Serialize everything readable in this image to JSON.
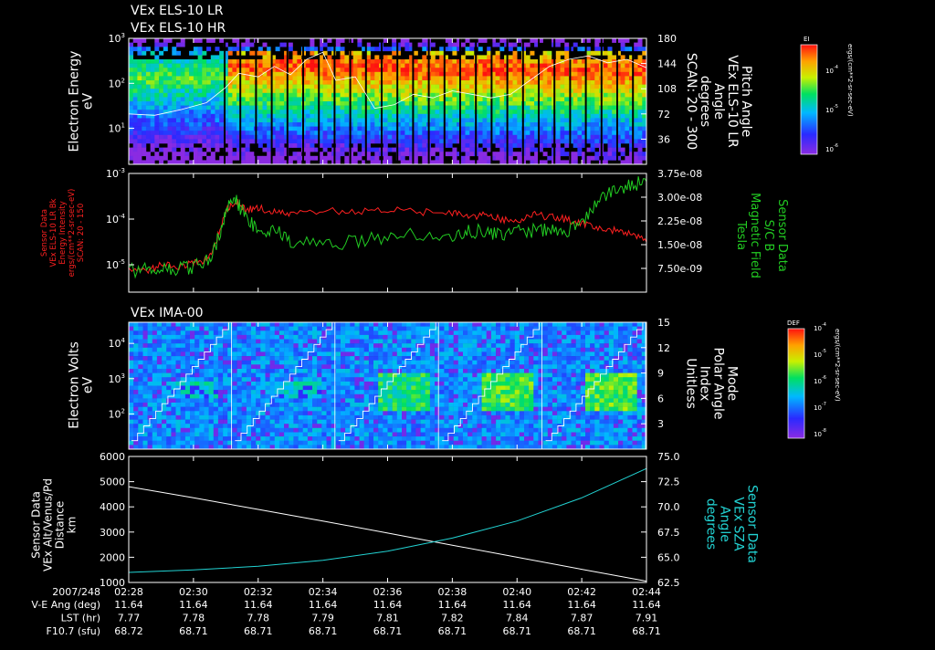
{
  "titles": {
    "p1_line1": "VEx ELS-10 LR",
    "p1_line2": "VEx ELS-10 HR",
    "p3": "VEx IMA-00"
  },
  "colors": {
    "white": "#ffffff",
    "red": "#ff2020",
    "green": "#22cc22",
    "cyan": "#22d3d3"
  },
  "chart_data": [
    {
      "type": "heatmap",
      "panel": "ELS electron spectrogram",
      "ylabel": [
        "Electron Energy",
        "eV"
      ],
      "y_scale": "log",
      "y_ticks": [
        {
          "base": "10",
          "exp": "3",
          "v": 3
        },
        {
          "base": "10",
          "exp": "2",
          "v": 2
        },
        {
          "base": "10",
          "exp": "1",
          "v": 1
        }
      ],
      "ylim_log10": [
        0.2,
        3.0
      ],
      "right_ylabel": [
        "Pitch Angle",
        "VEx ELS-10 LR",
        "Angle",
        "degrees",
        "SCAN: 20 - 300"
      ],
      "right_ticks": [
        "180",
        "144",
        "108",
        "72",
        "36"
      ],
      "right_lim": [
        0,
        180
      ],
      "right_tick_values": [
        180,
        144,
        108,
        72,
        36
      ],
      "colorbar": {
        "label": "EI",
        "units": "ergs/(cm**2-sr-sec-eV)",
        "ticks": [
          {
            "base": "10",
            "exp": "-4"
          },
          {
            "base": "10",
            "exp": "-5"
          },
          {
            "base": "10",
            "exp": "-6"
          }
        ]
      },
      "pitch_angle_deg": [
        {
          "t": 0.0,
          "v": 72
        },
        {
          "t": 0.8,
          "v": 70
        },
        {
          "t": 1.6,
          "v": 78
        },
        {
          "t": 2.4,
          "v": 88
        },
        {
          "t": 3.0,
          "v": 110
        },
        {
          "t": 3.4,
          "v": 130
        },
        {
          "t": 4.0,
          "v": 125
        },
        {
          "t": 4.5,
          "v": 140
        },
        {
          "t": 5.0,
          "v": 128
        },
        {
          "t": 5.5,
          "v": 150
        },
        {
          "t": 6.0,
          "v": 160
        },
        {
          "t": 6.4,
          "v": 120
        },
        {
          "t": 7.0,
          "v": 125
        },
        {
          "t": 7.6,
          "v": 80
        },
        {
          "t": 8.2,
          "v": 85
        },
        {
          "t": 8.8,
          "v": 100
        },
        {
          "t": 9.4,
          "v": 95
        },
        {
          "t": 10.0,
          "v": 105
        },
        {
          "t": 10.6,
          "v": 100
        },
        {
          "t": 11.2,
          "v": 95
        },
        {
          "t": 11.8,
          "v": 100
        },
        {
          "t": 12.4,
          "v": 120
        },
        {
          "t": 13.0,
          "v": 140
        },
        {
          "t": 13.6,
          "v": 150
        },
        {
          "t": 14.2,
          "v": 155
        },
        {
          "t": 14.8,
          "v": 145
        },
        {
          "t": 15.4,
          "v": 150
        },
        {
          "t": 16.0,
          "v": 138
        }
      ]
    },
    {
      "type": "line",
      "panel": "Energy intensity and magnetic field",
      "left_ylabel": [
        "Sensor Data",
        "VEx ELS-10 LR Bk",
        "Energy Intensity",
        "ergs/(cm**2-sr-sec-eV)",
        "SCAN: 20 - 150"
      ],
      "left_scale": "log",
      "left_ticks": [
        {
          "base": "10",
          "exp": "-3",
          "v": -3
        },
        {
          "base": "10",
          "exp": "-4",
          "v": -4
        },
        {
          "base": "10",
          "exp": "-5",
          "v": -5
        }
      ],
      "left_lim_log10": [
        -5.6,
        -3.0
      ],
      "right_ylabel": [
        "Sensor Data",
        "S/C B",
        "Magnetic Field",
        "Tesla"
      ],
      "right_ticks": [
        "3.75e-08",
        "3.00e-08",
        "2.25e-08",
        "1.50e-08",
        "7.50e-09"
      ],
      "right_tick_values": [
        3.75e-08,
        3e-08,
        2.25e-08,
        1.5e-08,
        7.5e-09
      ],
      "right_lim": [
        0,
        3.75e-08
      ],
      "series": [
        {
          "name": "Energy Intensity",
          "axis": "left",
          "color": "red",
          "x": [
            0,
            0.5,
            1.0,
            1.5,
            2.0,
            2.4,
            2.7,
            3.0,
            3.3,
            3.6,
            4.0,
            4.5,
            5.0,
            6.0,
            7.0,
            8.0,
            9.0,
            10.0,
            10.5,
            11.0,
            11.5,
            12.0,
            12.5,
            13.0,
            13.5,
            14.0,
            14.5,
            15.0,
            15.5,
            16.0
          ],
          "y_log10": [
            -5.1,
            -5.15,
            -5.0,
            -5.05,
            -4.95,
            -4.9,
            -4.5,
            -3.8,
            -3.6,
            -3.8,
            -3.75,
            -3.85,
            -3.9,
            -3.8,
            -3.85,
            -3.8,
            -3.85,
            -3.85,
            -3.95,
            -3.9,
            -4.0,
            -4.05,
            -3.9,
            -3.95,
            -4.0,
            -4.1,
            -4.2,
            -4.25,
            -4.3,
            -4.5
          ]
        },
        {
          "name": "Magnetic Field",
          "axis": "right",
          "color": "green",
          "x": [
            0,
            0.5,
            1.0,
            1.5,
            2.0,
            2.5,
            2.8,
            3.0,
            3.3,
            3.6,
            4.0,
            4.5,
            5.0,
            6.0,
            7.0,
            8.0,
            9.0,
            10.0,
            10.5,
            11.0,
            11.5,
            12.0,
            12.5,
            13.0,
            13.5,
            14.0,
            14.5,
            15.0,
            15.5,
            16.0
          ],
          "y_e8": [
            0.7,
            0.7,
            0.75,
            0.72,
            0.8,
            1.0,
            1.8,
            2.6,
            2.9,
            2.4,
            1.9,
            2.0,
            1.6,
            1.5,
            1.6,
            1.75,
            1.85,
            1.75,
            1.9,
            1.95,
            1.75,
            1.9,
            1.95,
            2.0,
            1.9,
            2.1,
            3.0,
            3.2,
            3.4,
            3.5
          ]
        }
      ]
    },
    {
      "type": "heatmap",
      "panel": "IMA ion spectrogram",
      "ylabel": [
        "Electron Volts",
        "eV"
      ],
      "y_scale": "log",
      "y_ticks": [
        {
          "base": "10",
          "exp": "4",
          "v": 4
        },
        {
          "base": "10",
          "exp": "3",
          "v": 3
        },
        {
          "base": "10",
          "exp": "2",
          "v": 2
        }
      ],
      "ylim_log10": [
        1.0,
        4.6
      ],
      "right_ylabel": [
        "Mode",
        "Polar Angle",
        "Index",
        "Unitless"
      ],
      "right_ticks": [
        "15",
        "12",
        "9",
        "6",
        "3"
      ],
      "right_tick_values": [
        15,
        12,
        9,
        6,
        3
      ],
      "right_lim": [
        0,
        15
      ],
      "colorbar": {
        "label": "DEF",
        "units": "ergs/(cm**2-sr-sec-eV)",
        "ticks": [
          {
            "base": "10",
            "exp": "-4"
          },
          {
            "base": "10",
            "exp": "-5"
          },
          {
            "base": "10",
            "exp": "-6"
          },
          {
            "base": "10",
            "exp": "-7"
          },
          {
            "base": "10",
            "exp": "-8"
          }
        ]
      },
      "polar_angle_sweeps": 5
    },
    {
      "type": "line",
      "panel": "Altitude and solar zenith angle",
      "left_ylabel": [
        "Sensor Data",
        "VEx Alt/Venus/Pd",
        "Distance",
        "km"
      ],
      "left_ticks": [
        "6000",
        "5000",
        "4000",
        "3000",
        "2000",
        "1000"
      ],
      "left_tick_values": [
        6000,
        5000,
        4000,
        3000,
        2000,
        1000
      ],
      "left_lim": [
        1000,
        6000
      ],
      "right_ylabel": [
        "Sensor Data",
        "VEx SZA",
        "Angle",
        "degrees"
      ],
      "right_ticks": [
        "75.0",
        "72.5",
        "70.0",
        "67.5",
        "65.0",
        "62.5"
      ],
      "right_tick_values": [
        75.0,
        72.5,
        70.0,
        67.5,
        65.0,
        62.5
      ],
      "right_lim": [
        62.5,
        75.0
      ],
      "series": [
        {
          "name": "Distance",
          "axis": "left",
          "color": "white",
          "x": [
            0,
            2,
            4,
            6,
            8,
            10,
            12,
            14,
            16
          ],
          "y": [
            4800,
            4360,
            3900,
            3440,
            2960,
            2480,
            2000,
            1520,
            1050
          ]
        },
        {
          "name": "SZA",
          "axis": "right",
          "color": "cyan",
          "x": [
            0,
            2,
            4,
            6,
            8,
            10,
            12,
            14,
            16
          ],
          "y": [
            63.5,
            63.75,
            64.1,
            64.7,
            65.6,
            66.9,
            68.6,
            70.9,
            73.8
          ]
        }
      ]
    }
  ],
  "time_axis": {
    "date": "2007/248",
    "ticks": [
      "02:28",
      "02:30",
      "02:32",
      "02:34",
      "02:36",
      "02:38",
      "02:40",
      "02:42",
      "02:44"
    ],
    "tick_minutes": [
      0,
      2,
      4,
      6,
      8,
      10,
      12,
      14,
      16
    ],
    "range_minutes": [
      0,
      16
    ]
  },
  "ephemeris": [
    {
      "label": "V-E Ang (deg)",
      "values": [
        "11.64",
        "11.64",
        "11.64",
        "11.64",
        "11.64",
        "11.64",
        "11.64",
        "11.64",
        "11.64"
      ]
    },
    {
      "label": "LST (hr)",
      "values": [
        "7.77",
        "7.78",
        "7.78",
        "7.79",
        "7.81",
        "7.82",
        "7.84",
        "7.87",
        "7.91"
      ]
    },
    {
      "label": "F10.7 (sfu)",
      "values": [
        "68.72",
        "68.71",
        "68.71",
        "68.71",
        "68.71",
        "68.71",
        "68.71",
        "68.71",
        "68.71"
      ]
    }
  ]
}
